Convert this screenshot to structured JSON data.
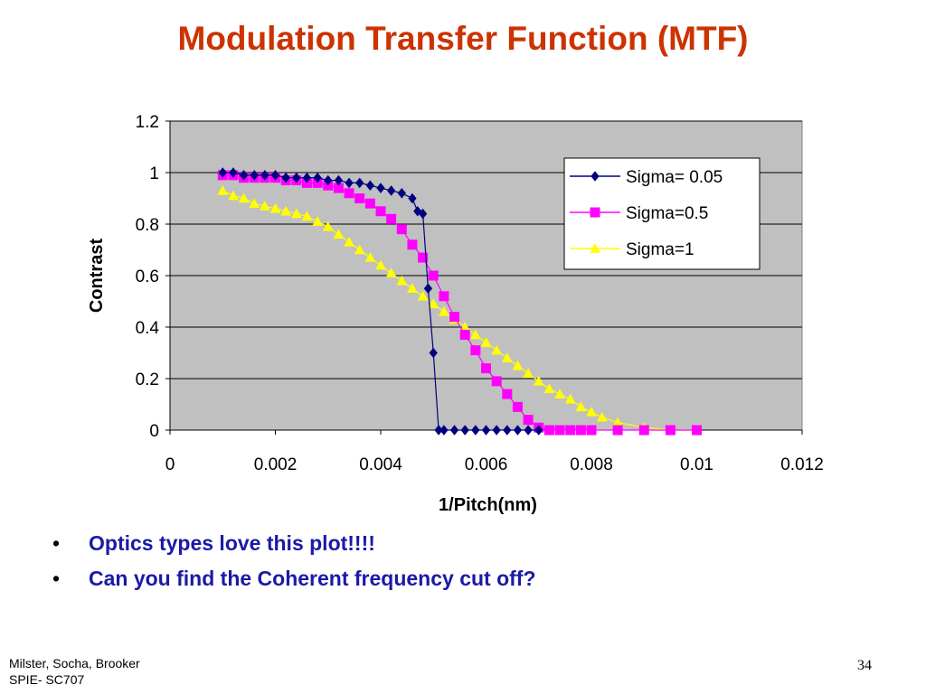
{
  "slide": {
    "title": "Modulation Transfer Function (MTF)",
    "bullets": [
      "Optics types love this plot!!!!",
      "Can you find the Coherent frequency cut off?"
    ],
    "footer_line1": "Milster, Socha, Brooker",
    "footer_line2": "SPIE- SC707",
    "page_number": "34"
  },
  "chart_data": {
    "type": "scatter",
    "title": "",
    "xlabel": "1/Pitch(nm)",
    "ylabel": "Contrast",
    "xlim": [
      0,
      0.012
    ],
    "ylim": [
      0,
      1.2
    ],
    "xticks": [
      "0",
      "0.002",
      "0.004",
      "0.006",
      "0.008",
      "0.01",
      "0.012"
    ],
    "yticks": [
      "0",
      "0.2",
      "0.4",
      "0.6",
      "0.8",
      "1",
      "1.2"
    ],
    "grid": true,
    "legend": "top-right",
    "plot_background": "#c0c0c0",
    "series": [
      {
        "name": "Sigma= 0.05",
        "color": "#000080",
        "marker": "diamond",
        "x": [
          0.001,
          0.0012,
          0.0014,
          0.0016,
          0.0018,
          0.002,
          0.0022,
          0.0024,
          0.0026,
          0.0028,
          0.003,
          0.0032,
          0.0034,
          0.0036,
          0.0038,
          0.004,
          0.0042,
          0.0044,
          0.0046,
          0.0047,
          0.0048,
          0.0049,
          0.005,
          0.0051,
          0.0052,
          0.0054,
          0.0056,
          0.0058,
          0.006,
          0.0062,
          0.0064,
          0.0066,
          0.0068,
          0.007
        ],
        "y": [
          1,
          1,
          0.99,
          0.99,
          0.99,
          0.99,
          0.98,
          0.98,
          0.98,
          0.98,
          0.97,
          0.97,
          0.96,
          0.96,
          0.95,
          0.94,
          0.93,
          0.92,
          0.9,
          0.85,
          0.84,
          0.55,
          0.3,
          0,
          0,
          0,
          0,
          0,
          0,
          0,
          0,
          0,
          0,
          0
        ]
      },
      {
        "name": "Sigma=0.5",
        "color": "#ff00ff",
        "marker": "square",
        "x": [
          0.001,
          0.0012,
          0.0014,
          0.0016,
          0.0018,
          0.002,
          0.0022,
          0.0024,
          0.0026,
          0.0028,
          0.003,
          0.0032,
          0.0034,
          0.0036,
          0.0038,
          0.004,
          0.0042,
          0.0044,
          0.0046,
          0.0048,
          0.005,
          0.0052,
          0.0054,
          0.0056,
          0.0058,
          0.006,
          0.0062,
          0.0064,
          0.0066,
          0.0068,
          0.007,
          0.0072,
          0.0074,
          0.0076,
          0.0078,
          0.008,
          0.0085,
          0.009,
          0.0095,
          0.01
        ],
        "y": [
          0.99,
          0.99,
          0.98,
          0.98,
          0.98,
          0.98,
          0.97,
          0.97,
          0.96,
          0.96,
          0.95,
          0.94,
          0.92,
          0.9,
          0.88,
          0.85,
          0.82,
          0.78,
          0.72,
          0.67,
          0.6,
          0.52,
          0.44,
          0.37,
          0.31,
          0.24,
          0.19,
          0.14,
          0.09,
          0.04,
          0.01,
          0,
          0,
          0,
          0,
          0,
          0,
          0,
          0,
          0
        ]
      },
      {
        "name": "Sigma=1",
        "color": "#ffff00",
        "marker": "triangle",
        "x": [
          0.001,
          0.0012,
          0.0014,
          0.0016,
          0.0018,
          0.002,
          0.0022,
          0.0024,
          0.0026,
          0.0028,
          0.003,
          0.0032,
          0.0034,
          0.0036,
          0.0038,
          0.004,
          0.0042,
          0.0044,
          0.0046,
          0.0048,
          0.005,
          0.0052,
          0.0054,
          0.0056,
          0.0058,
          0.006,
          0.0062,
          0.0064,
          0.0066,
          0.0068,
          0.007,
          0.0072,
          0.0074,
          0.0076,
          0.0078,
          0.008,
          0.0082,
          0.0085,
          0.009,
          0.0095,
          0.01
        ],
        "y": [
          0.93,
          0.91,
          0.9,
          0.88,
          0.87,
          0.86,
          0.85,
          0.84,
          0.83,
          0.81,
          0.79,
          0.76,
          0.73,
          0.7,
          0.67,
          0.64,
          0.61,
          0.58,
          0.55,
          0.52,
          0.49,
          0.46,
          0.43,
          0.4,
          0.37,
          0.34,
          0.31,
          0.28,
          0.25,
          0.22,
          0.19,
          0.16,
          0.14,
          0.12,
          0.09,
          0.07,
          0.05,
          0.03,
          0.01,
          0,
          0
        ]
      }
    ]
  }
}
